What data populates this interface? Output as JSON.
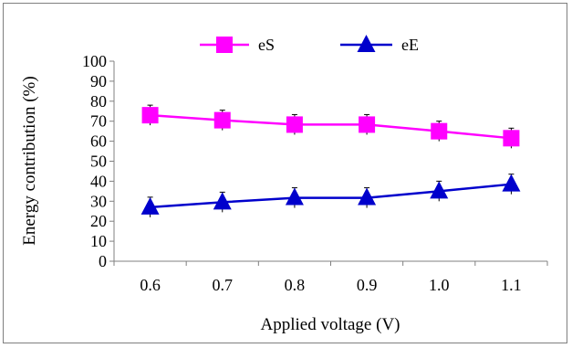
{
  "chart_data": {
    "type": "line",
    "title": "",
    "xlabel": "Applied voltage (V)",
    "ylabel": "Energy contribution  (%)",
    "categories": [
      "0.6",
      "0.7",
      "0.8",
      "0.9",
      "1.0",
      "1.1"
    ],
    "ylim": [
      0,
      100
    ],
    "yticks": [
      "0",
      "10",
      "20",
      "30",
      "40",
      "50",
      "60",
      "70",
      "80",
      "90",
      "100"
    ],
    "grid": false,
    "legend_position": "top",
    "series": [
      {
        "name": "eS",
        "values": [
          73,
          70.5,
          68.3,
          68.3,
          65,
          61.5
        ],
        "color": "#ff00ff",
        "marker": "square"
      },
      {
        "name": "eE",
        "values": [
          27,
          29.5,
          31.7,
          31.7,
          35,
          38.5
        ],
        "color": "#0000cc",
        "marker": "triangle"
      }
    ]
  }
}
